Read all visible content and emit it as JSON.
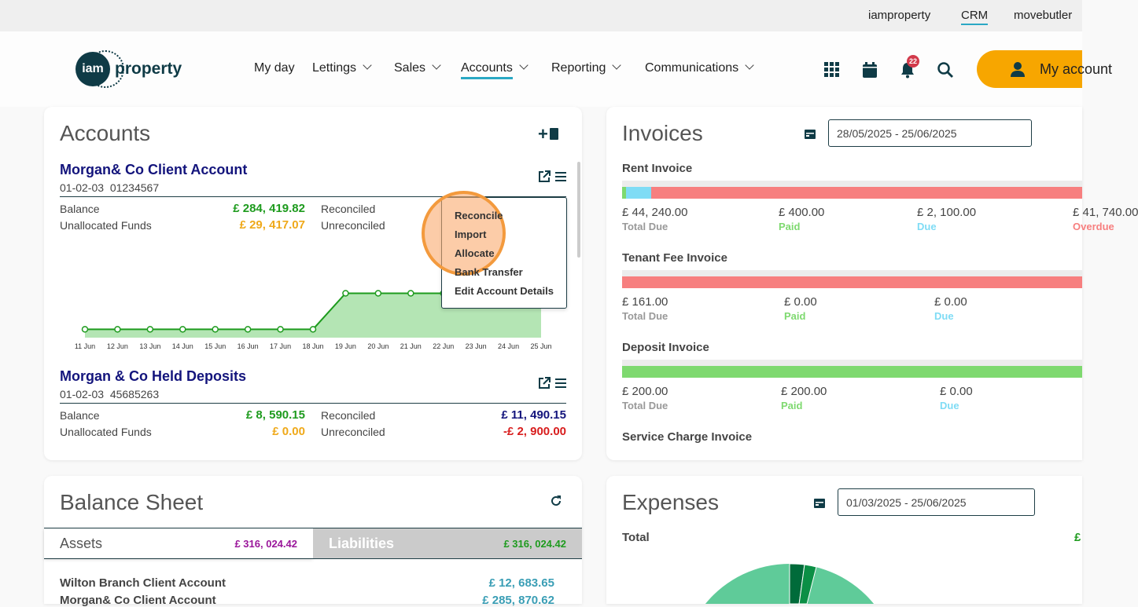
{
  "topbar": {
    "links": [
      "iamproperty",
      "CRM",
      "movebutler"
    ],
    "active": "CRM"
  },
  "header": {
    "logo_circle": "iam",
    "logo_text": "property",
    "nav": [
      "My day",
      "Lettings",
      "Sales",
      "Accounts",
      "Reporting",
      "Communications"
    ],
    "active": "Accounts",
    "notification_count": "22",
    "my_account": "My account"
  },
  "accounts": {
    "title": "Accounts",
    "items": [
      {
        "name": "Morgan& Co Client Account",
        "sort_code": "01-02-03",
        "number": "01234567",
        "balance_label": "Balance",
        "balance": "£ 284, 419.82",
        "unalloc_label": "Unallocated Funds",
        "unalloc": "£ 29, 417.07",
        "reconciled_label": "Reconciled",
        "unreconciled_label": "Unreconciled"
      },
      {
        "name": "Morgan & Co Held Deposits",
        "sort_code": "01-02-03",
        "number": "45685263",
        "balance_label": "Balance",
        "balance": "£ 8, 590.15",
        "unalloc_label": "Unallocated Funds",
        "unalloc": "£ 0.00",
        "reconciled_label": "Reconciled",
        "reconciled": "£ 11, 490.15",
        "unreconciled_label": "Unreconciled",
        "unreconciled": "-£ 2, 900.00"
      }
    ],
    "menu": [
      "Reconcile",
      "Import",
      "Allocate",
      "Bank Transfer",
      "Edit Account Details"
    ]
  },
  "chart_data": {
    "type": "area",
    "title": "",
    "xlabel": "",
    "ylabel": "",
    "categories": [
      "11 Jun",
      "12 Jun",
      "13 Jun",
      "14 Jun",
      "15 Jun",
      "16 Jun",
      "17 Jun",
      "18 Jun",
      "19 Jun",
      "20 Jun",
      "21 Jun",
      "22 Jun",
      "23 Jun",
      "24 Jun",
      "25 Jun"
    ],
    "values": [
      1,
      1,
      1,
      1,
      1,
      1,
      1,
      1,
      5.3,
      5.3,
      5.3,
      5.3,
      5.3,
      5.3,
      5.3
    ],
    "ylim": [
      0,
      6
    ],
    "grid": false,
    "colors": {
      "line": "#1e9b1e",
      "fill": "#b4e5b4"
    }
  },
  "invoices": {
    "title": "Invoices",
    "date_range": "28/05/2025 - 25/06/2025",
    "sections": [
      {
        "name": "Rent Invoice",
        "total": "£ 44, 240.00",
        "paid": "£ 400.00",
        "due": "£ 2, 100.00",
        "overdue": "£ 41, 740.00",
        "labels": [
          "Total Due",
          "Paid",
          "Due",
          "Overdue"
        ],
        "fractions": [
          0.009,
          0.047,
          0.944
        ]
      },
      {
        "name": "Tenant Fee Invoice",
        "total": "£ 161.00",
        "paid": "£ 0.00",
        "due": "£ 0.00",
        "labels": [
          "Total Due",
          "Paid",
          "Due"
        ],
        "fractions": [
          0,
          0,
          1
        ]
      },
      {
        "name": "Deposit Invoice",
        "total": "£ 200.00",
        "paid": "£ 200.00",
        "due": "£ 0.00",
        "labels": [
          "Total Due",
          "Paid",
          "Due"
        ],
        "fractions": [
          1,
          0,
          0
        ]
      },
      {
        "name": "Service Charge Invoice"
      }
    ]
  },
  "balance_sheet": {
    "title": "Balance Sheet",
    "assets_label": "Assets",
    "assets": "£ 316, 024.42",
    "liabilities_label": "Liabilities",
    "liabilities": "£ 316, 024.42",
    "rows": [
      {
        "name": "Wilton Branch Client Account",
        "value": "£ 12, 683.65"
      },
      {
        "name": "Morgan& Co Client Account",
        "value": "£ 285, 870.62"
      }
    ]
  },
  "expenses": {
    "title": "Expenses",
    "date_range": "01/03/2025 - 25/06/2025",
    "total_label": "Total",
    "total": "£"
  },
  "colors": {
    "paid": "#7ed96f",
    "due": "#7fdcf5",
    "overdue": "#f77f7f",
    "accent": "#f7a600"
  }
}
